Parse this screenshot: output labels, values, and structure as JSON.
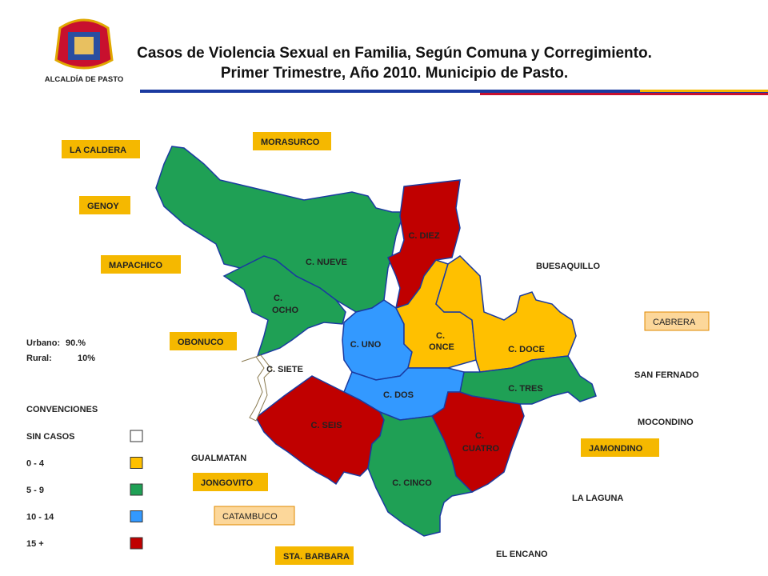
{
  "header": {
    "title_line1": "Casos de Violencia Sexual en Familia, Según Comuna y Corregimiento.",
    "title_line2": "Primer Trimestre, Año 2010. Municipio de Pasto.",
    "logo_text": "ALCALDÍA DE PASTO"
  },
  "comunas": [
    {
      "label": "C. NUEVE",
      "color": "#1fa055"
    },
    {
      "label": "C. OCHO",
      "color": "#1fa055"
    },
    {
      "label": "C. DIEZ",
      "color": "#c00000"
    },
    {
      "label": "C. UNO",
      "color": "#3399ff"
    },
    {
      "label": "C. ONCE",
      "color": "#ffc000"
    },
    {
      "label": "C. DOCE",
      "color": "#ffc000"
    },
    {
      "label": "C. TRES",
      "color": "#1fa055"
    },
    {
      "label": "C. DOS",
      "color": "#3399ff"
    },
    {
      "label": "C. SEIS",
      "color": "#c00000"
    },
    {
      "label": "C. CUATRO",
      "color": "#c00000"
    },
    {
      "label": "C. CINCO",
      "color": "#1fa055"
    },
    {
      "label": "C. SIETE",
      "color": "#ffffff"
    }
  ],
  "corregimientos": [
    {
      "label": "LA CALDERA",
      "box": "filled"
    },
    {
      "label": "MORASURCO",
      "box": "filled"
    },
    {
      "label": "GENOY",
      "box": "filled"
    },
    {
      "label": "MAPACHICO",
      "box": "filled"
    },
    {
      "label": "OBONUCO",
      "box": "filled"
    },
    {
      "label": "BUESAQUILLO",
      "box": "none"
    },
    {
      "label": "CABRERA",
      "box": "outline"
    },
    {
      "label": "SAN FERNADO",
      "box": "none"
    },
    {
      "label": "MOCONDINO",
      "box": "none"
    },
    {
      "label": "JAMONDINO",
      "box": "filled"
    },
    {
      "label": "GUALMATAN",
      "box": "none"
    },
    {
      "label": "JONGOVITO",
      "box": "filled"
    },
    {
      "label": "CATAMBUCO",
      "box": "outline"
    },
    {
      "label": "LA LAGUNA",
      "box": "none"
    },
    {
      "label": "EL ENCANO",
      "box": "none"
    },
    {
      "label": "STA. BARBARA",
      "box": "filled"
    }
  ],
  "stats": [
    {
      "label": "Urbano:",
      "value": "90.%"
    },
    {
      "label": "Rural:",
      "value": "10%"
    }
  ],
  "legend": {
    "title": "CONVENCIONES",
    "items": [
      {
        "label": "SIN CASOS",
        "color": "#ffffff"
      },
      {
        "label": "0 - 4",
        "color": "#ffc000"
      },
      {
        "label": "5 - 9",
        "color": "#1fa055"
      },
      {
        "label": "10 - 14",
        "color": "#3399ff"
      },
      {
        "label": "15 +",
        "color": "#c00000"
      }
    ]
  }
}
